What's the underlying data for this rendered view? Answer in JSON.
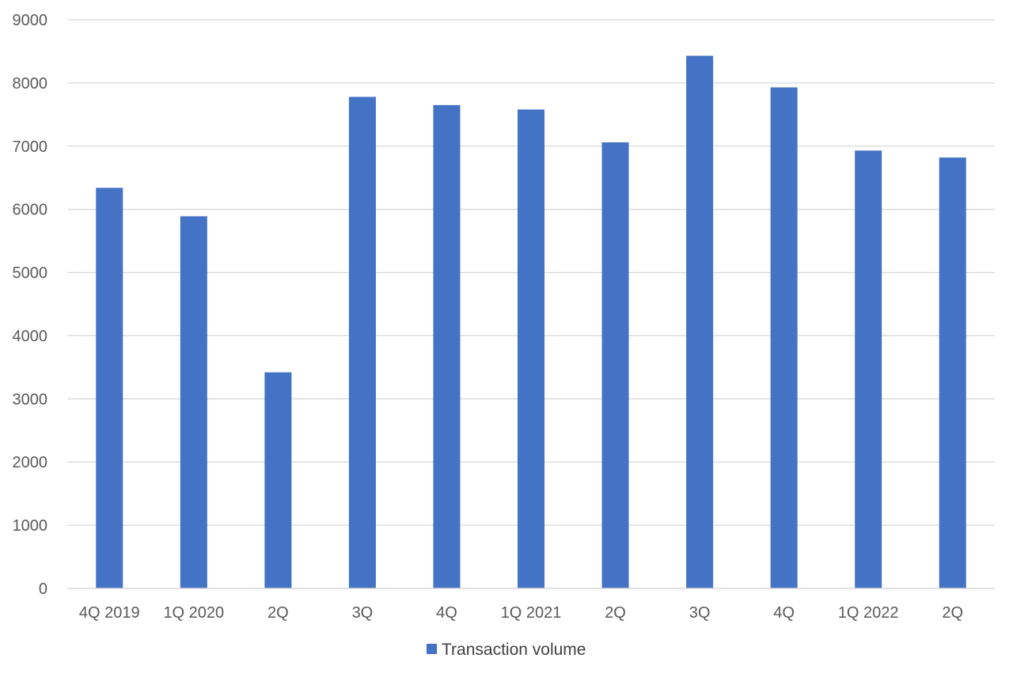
{
  "chart_data": {
    "type": "bar",
    "categories": [
      "4Q 2019",
      "1Q 2020",
      "2Q",
      "3Q",
      "4Q",
      "1Q 2021",
      "2Q",
      "3Q",
      "4Q",
      "1Q 2022",
      "2Q"
    ],
    "series": [
      {
        "name": "Transaction volume",
        "color": "#4472C4",
        "values": [
          6340,
          5890,
          3420,
          7780,
          7650,
          7580,
          7060,
          8430,
          7930,
          6930,
          6820
        ]
      }
    ],
    "ylim": [
      0,
      9000
    ],
    "yticks": [
      0,
      1000,
      2000,
      3000,
      4000,
      5000,
      6000,
      7000,
      8000,
      9000
    ],
    "grid": true,
    "legend_position": "bottom",
    "gridline_color": "#d9d9d9",
    "axis_line_color": "#d9d9d9"
  }
}
